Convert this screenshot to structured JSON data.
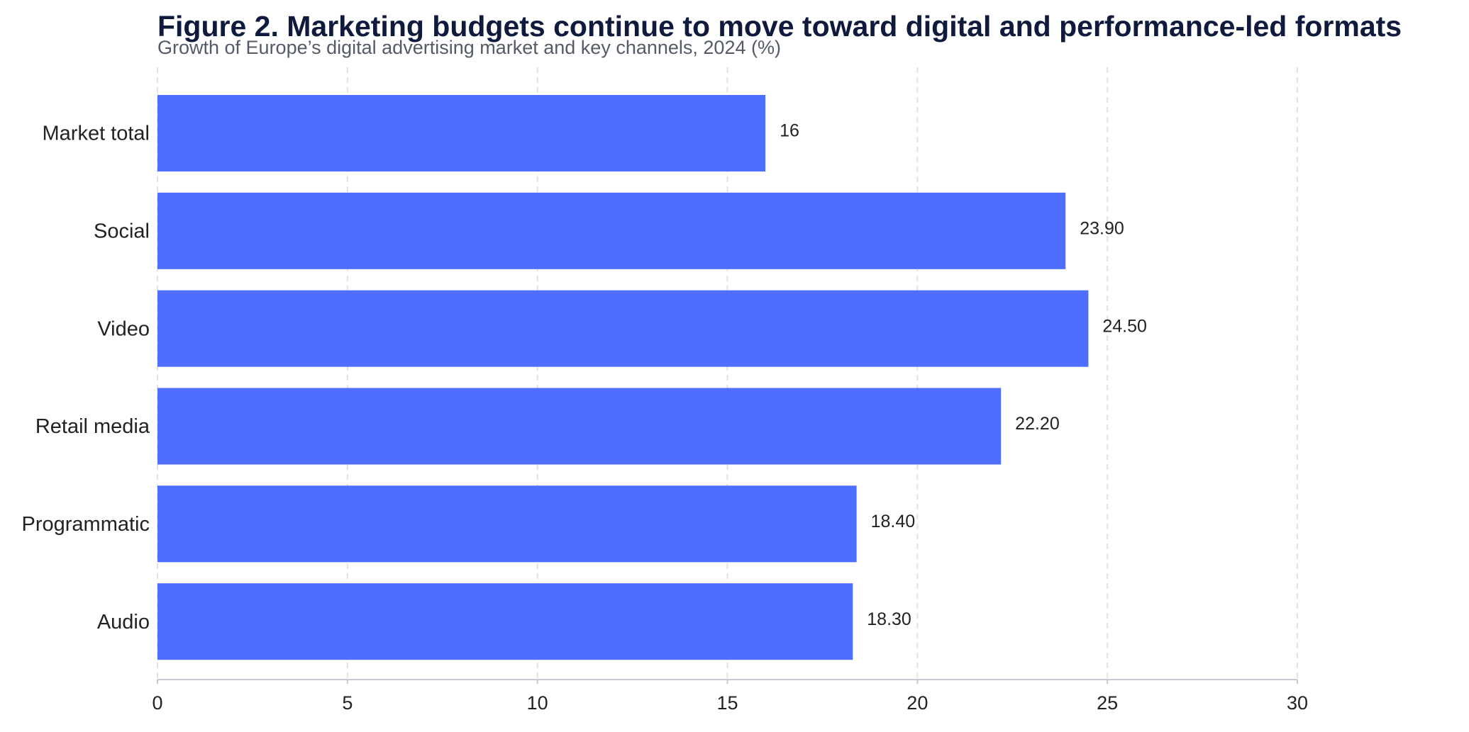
{
  "chart_data": {
    "type": "hbar",
    "title": "Figure 2. Marketing budgets continue to move toward digital and performance-led formats",
    "subtitle": "Growth of Europe’s digital advertising market and key channels, 2024 (%)",
    "categories": [
      "Market total",
      "Social",
      "Video",
      "Retail media",
      "Programmatic",
      "Audio"
    ],
    "values": [
      16,
      23.9,
      24.5,
      22.2,
      18.4,
      18.3
    ],
    "value_labels": [
      "16",
      "23.90",
      "24.50",
      "22.20",
      "18.40",
      "18.30"
    ],
    "color": "#4d6eff",
    "xlim": [
      0,
      30
    ],
    "xticks": [
      0,
      5,
      10,
      15,
      20,
      25,
      30
    ],
    "grid": true
  }
}
